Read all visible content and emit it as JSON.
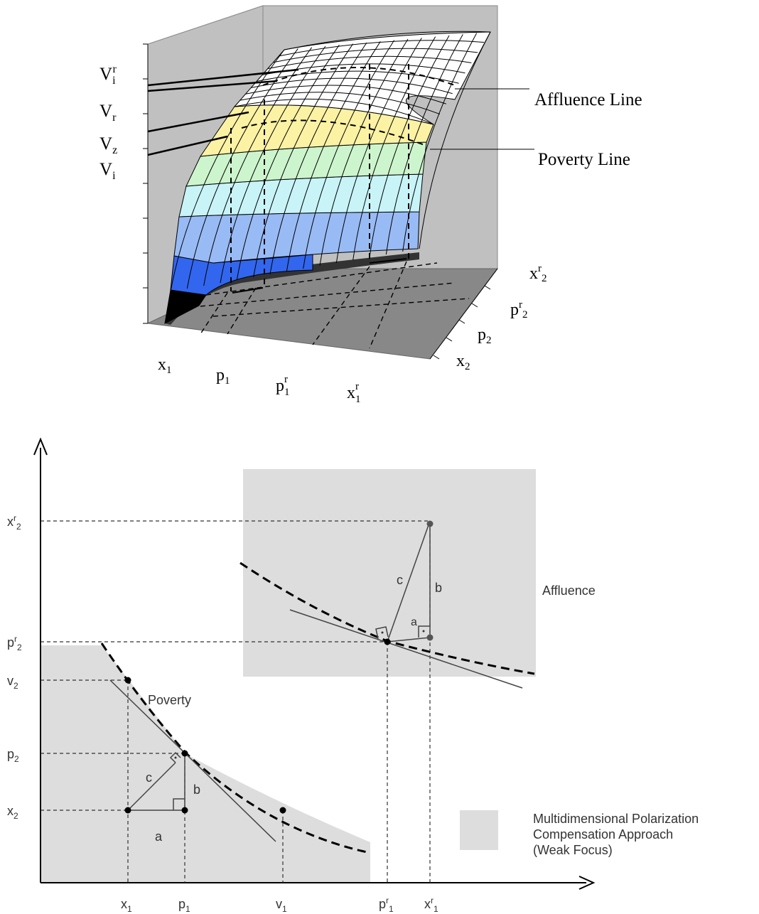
{
  "top_figure": {
    "z_labels": [
      "V",
      "V",
      "V",
      "V"
    ],
    "z_subs": [
      "i",
      "r",
      "z",
      "i"
    ],
    "z_sup_first": "r",
    "affluence_line": "Affluence Line",
    "poverty_line": "Poverty Line",
    "front_axis": {
      "x1": "x",
      "x1_sub": "1",
      "p1": "p",
      "p1_sub": "1",
      "pr1": "p",
      "pr1_sup": "r",
      "pr1_sub": "1",
      "xr1": "x",
      "xr1_sup": "r",
      "xr1_sub": "1"
    },
    "side_axis": {
      "xr2": "x",
      "xr2_sup": "r",
      "xr2_sub": "2",
      "pr2": "p",
      "pr2_sup": "r",
      "pr2_sub": "2",
      "p2": "p",
      "p2_sub": "2",
      "x2": "x",
      "x2_sub": "2"
    },
    "band_colors": [
      "#000000",
      "#3366ee",
      "#99bbf5",
      "#c8f4f8",
      "#cdf5cd",
      "#fbf2a4",
      "#ffffff"
    ]
  },
  "bottom_figure": {
    "y_labels": {
      "xr2": "x",
      "xr2_sup": "r",
      "xr2_sub": "2",
      "pr2": "p",
      "pr2_sup": "r",
      "pr2_sub": "2",
      "v2": "v",
      "v2_sub": "2",
      "p2": "p",
      "p2_sub": "2",
      "x2": "x",
      "x2_sub": "2"
    },
    "x_labels": {
      "x1": "x",
      "x1_sub": "1",
      "p1": "p",
      "p1_sub": "1",
      "v1": "v",
      "v1_sub": "1",
      "pr1": "p",
      "pr1_sup": "r",
      "pr1_sub": "1",
      "xr1": "x",
      "xr1_sup": "r",
      "xr1_sub": "1"
    },
    "region_labels": {
      "affluence": "Affluence",
      "poverty": "Poverty"
    },
    "triangle_labels": {
      "a": "a",
      "b": "b",
      "c": "c"
    },
    "legend": [
      "Multidimensional Polarization",
      "Compensation Approach",
      "(Weak Focus)"
    ],
    "region_fill": "#dddddd"
  }
}
